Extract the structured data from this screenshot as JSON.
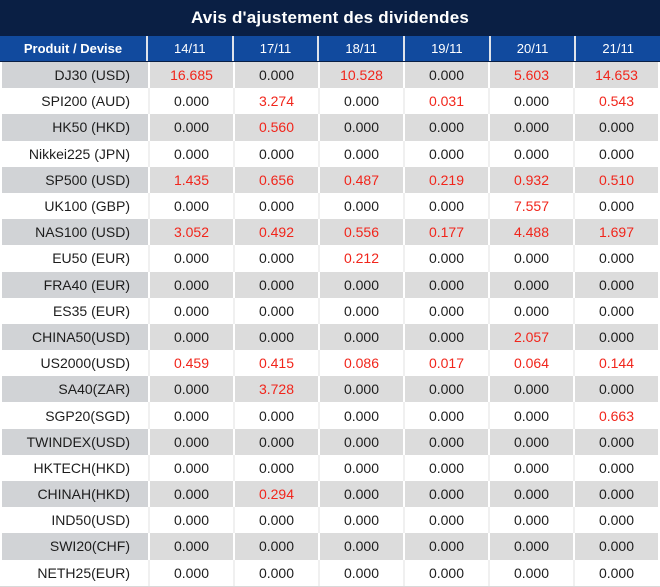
{
  "title": "Avis d'ajustement des dividendes",
  "colors": {
    "title_bar_bg": "#0a1f44",
    "header_bg": "#114a9e",
    "row_gray_label": "#d1d3d6",
    "row_gray_value": "#dcdcdc",
    "zero_value_text": "#1d1d1d",
    "nonzero_value_text": "#f1251b"
  },
  "table": {
    "product_header": "Produit / Devise",
    "date_headers": [
      "14/11",
      "17/11",
      "18/11",
      "19/11",
      "20/11",
      "21/11"
    ],
    "zero_value": "0.000",
    "rows": [
      {
        "product": "DJ30 (USD)",
        "values": [
          "16.685",
          "0.000",
          "10.528",
          "0.000",
          "5.603",
          "14.653"
        ]
      },
      {
        "product": "SPI200 (AUD)",
        "values": [
          "0.000",
          "3.274",
          "0.000",
          "0.031",
          "0.000",
          "0.543"
        ]
      },
      {
        "product": "HK50 (HKD)",
        "values": [
          "0.000",
          "0.560",
          "0.000",
          "0.000",
          "0.000",
          "0.000"
        ]
      },
      {
        "product": "Nikkei225 (JPN)",
        "values": [
          "0.000",
          "0.000",
          "0.000",
          "0.000",
          "0.000",
          "0.000"
        ]
      },
      {
        "product": "SP500 (USD)",
        "values": [
          "1.435",
          "0.656",
          "0.487",
          "0.219",
          "0.932",
          "0.510"
        ]
      },
      {
        "product": "UK100 (GBP)",
        "values": [
          "0.000",
          "0.000",
          "0.000",
          "0.000",
          "7.557",
          "0.000"
        ]
      },
      {
        "product": "NAS100 (USD)",
        "values": [
          "3.052",
          "0.492",
          "0.556",
          "0.177",
          "4.488",
          "1.697"
        ]
      },
      {
        "product": "EU50 (EUR)",
        "values": [
          "0.000",
          "0.000",
          "0.212",
          "0.000",
          "0.000",
          "0.000"
        ]
      },
      {
        "product": "FRA40 (EUR)",
        "values": [
          "0.000",
          "0.000",
          "0.000",
          "0.000",
          "0.000",
          "0.000"
        ]
      },
      {
        "product": "ES35 (EUR)",
        "values": [
          "0.000",
          "0.000",
          "0.000",
          "0.000",
          "0.000",
          "0.000"
        ]
      },
      {
        "product": "CHINA50(USD)",
        "values": [
          "0.000",
          "0.000",
          "0.000",
          "0.000",
          "2.057",
          "0.000"
        ]
      },
      {
        "product": "US2000(USD)",
        "values": [
          "0.459",
          "0.415",
          "0.086",
          "0.017",
          "0.064",
          "0.144"
        ]
      },
      {
        "product": "SA40(ZAR)",
        "values": [
          "0.000",
          "3.728",
          "0.000",
          "0.000",
          "0.000",
          "0.000"
        ]
      },
      {
        "product": "SGP20(SGD)",
        "values": [
          "0.000",
          "0.000",
          "0.000",
          "0.000",
          "0.000",
          "0.663"
        ]
      },
      {
        "product": "TWINDEX(USD)",
        "values": [
          "0.000",
          "0.000",
          "0.000",
          "0.000",
          "0.000",
          "0.000"
        ]
      },
      {
        "product": "HKTECH(HKD)",
        "values": [
          "0.000",
          "0.000",
          "0.000",
          "0.000",
          "0.000",
          "0.000"
        ]
      },
      {
        "product": "CHINAH(HKD)",
        "values": [
          "0.000",
          "0.294",
          "0.000",
          "0.000",
          "0.000",
          "0.000"
        ]
      },
      {
        "product": "IND50(USD)",
        "values": [
          "0.000",
          "0.000",
          "0.000",
          "0.000",
          "0.000",
          "0.000"
        ]
      },
      {
        "product": "SWI20(CHF)",
        "values": [
          "0.000",
          "0.000",
          "0.000",
          "0.000",
          "0.000",
          "0.000"
        ]
      },
      {
        "product": "NETH25(EUR)",
        "values": [
          "0.000",
          "0.000",
          "0.000",
          "0.000",
          "0.000",
          "0.000"
        ]
      }
    ]
  }
}
